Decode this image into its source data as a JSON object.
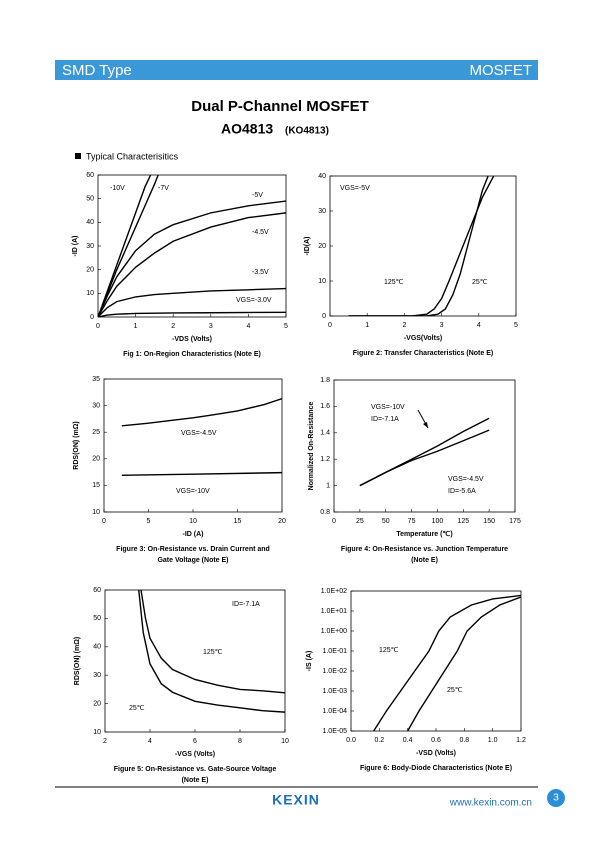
{
  "header": {
    "left": "SMD Type",
    "right": "MOSFET"
  },
  "title": "Dual P-Channel MOSFET",
  "part": "AO4813",
  "part_alt": "(KO4813)",
  "section": "Typical Characterisitics",
  "chart_data": [
    {
      "type": "line",
      "color": "#000000",
      "xlim": [
        0,
        5
      ],
      "ylim": [
        0,
        60
      ],
      "xticks": [
        0,
        1,
        2,
        3,
        4,
        5
      ],
      "yticks": [
        0,
        10,
        20,
        30,
        40,
        50,
        60
      ],
      "xlabel": "-VDS (Volts)",
      "ylabel": "-ID (A)",
      "caption": [
        "Fig 1: On-Region Characteristics (Note E)"
      ],
      "annotations": [
        "-10V",
        "-7V",
        "-5V",
        "-4.5V",
        "-3.5V",
        "VGS=-3.0V"
      ],
      "series": [
        {
          "x": [
            0,
            0.25,
            0.5,
            0.75,
            1,
            1.25,
            1.4
          ],
          "values": [
            0,
            11,
            22,
            33,
            44,
            55,
            60
          ]
        },
        {
          "x": [
            0,
            0.25,
            0.5,
            0.75,
            1,
            1.25,
            1.5,
            1.6
          ],
          "values": [
            0,
            10,
            20,
            29,
            38,
            47,
            56,
            60
          ]
        },
        {
          "x": [
            0,
            0.25,
            0.5,
            1,
            1.5,
            2,
            3,
            4,
            5
          ],
          "values": [
            0,
            9,
            17,
            28,
            35,
            39,
            44,
            47,
            49
          ]
        },
        {
          "x": [
            0,
            0.25,
            0.5,
            1,
            1.5,
            2,
            3,
            4,
            5
          ],
          "values": [
            0,
            7,
            13,
            21,
            27,
            32,
            38,
            42,
            44
          ]
        },
        {
          "x": [
            0,
            0.25,
            0.5,
            1,
            1.5,
            2,
            3,
            4,
            5
          ],
          "values": [
            0,
            4,
            6.5,
            8.5,
            9.5,
            10,
            11,
            11.5,
            12
          ]
        },
        {
          "x": [
            0,
            0.25,
            0.5,
            1,
            2,
            3,
            5
          ],
          "values": [
            0,
            0.8,
            1.2,
            1.5,
            1.7,
            1.8,
            2
          ]
        }
      ]
    },
    {
      "type": "line",
      "color": "#000000",
      "xlim": [
        0,
        5
      ],
      "ylim": [
        0,
        40
      ],
      "xticks": [
        0,
        1,
        2,
        3,
        4,
        5
      ],
      "yticks": [
        0,
        10,
        20,
        30,
        40
      ],
      "xlabel": "-VGS(Volts)",
      "ylabel": "-ID(A)",
      "caption": [
        "Figure 2: Transfer Characteristics (Note E)"
      ],
      "annotations": [
        "VGS=-5V",
        "125℃",
        "25℃"
      ],
      "series": [
        {
          "x": [
            0.5,
            2.2,
            2.6,
            2.8,
            3.0,
            3.2,
            3.5,
            3.8,
            4.1,
            4.4
          ],
          "values": [
            0,
            0,
            0.5,
            2,
            5,
            10,
            18,
            26,
            34,
            40
          ]
        },
        {
          "x": [
            0.5,
            2.6,
            2.9,
            3.1,
            3.3,
            3.5,
            3.7,
            3.9,
            4.1,
            4.25
          ],
          "values": [
            0,
            0,
            0.5,
            2,
            6,
            12,
            20,
            28,
            36,
            40
          ]
        }
      ]
    },
    {
      "type": "line",
      "color": "#000000",
      "xlim": [
        0,
        20
      ],
      "ylim": [
        10,
        35
      ],
      "xticks": [
        0,
        5,
        10,
        15,
        20
      ],
      "yticks": [
        10,
        15,
        20,
        25,
        30,
        35
      ],
      "xlabel": "-ID (A)",
      "ylabel": "RDS(ON) (mΩ)",
      "caption": [
        "Figure 3: On-Resistance vs. Drain Current and",
        "Gate Voltage (Note E)"
      ],
      "annotations": [
        "VGS=-4.5V",
        "VGS=-10V"
      ],
      "series": [
        {
          "x": [
            2,
            5,
            8,
            10,
            12,
            15,
            18,
            20
          ],
          "values": [
            26.2,
            26.7,
            27.3,
            27.7,
            28.2,
            29,
            30.2,
            31.3
          ]
        },
        {
          "x": [
            2,
            10,
            20
          ],
          "values": [
            16.9,
            17.1,
            17.4
          ]
        }
      ]
    },
    {
      "type": "line",
      "color": "#000000",
      "xlim": [
        0,
        175
      ],
      "ylim": [
        0.8,
        1.8
      ],
      "xticks": [
        0,
        25,
        50,
        75,
        100,
        125,
        150,
        175
      ],
      "yticks": [
        0.8,
        1,
        1.2,
        1.4,
        1.6,
        1.8
      ],
      "xlabel": "Temperature (℃)",
      "ylabel": "Normalized On-Resistance",
      "caption": [
        "Figure 4: On-Resistance vs. Junction Temperature",
        "(Note E)"
      ],
      "annotations": [
        "VGS=-10V",
        "ID=-7.1A",
        "VGS=-4.5V",
        "ID=-5.6A"
      ],
      "series": [
        {
          "x": [
            25,
            50,
            75,
            100,
            125,
            150
          ],
          "values": [
            1.0,
            1.1,
            1.2,
            1.3,
            1.41,
            1.51
          ]
        },
        {
          "x": [
            25,
            50,
            75,
            100,
            125,
            150
          ],
          "values": [
            1.0,
            1.1,
            1.19,
            1.26,
            1.34,
            1.42
          ]
        }
      ]
    },
    {
      "type": "line",
      "color": "#000000",
      "xlim": [
        2,
        10
      ],
      "ylim": [
        10,
        60
      ],
      "xticks": [
        2,
        4,
        6,
        8,
        10
      ],
      "yticks": [
        10,
        20,
        30,
        40,
        50,
        60
      ],
      "xlabel": "-VGS (Volts)",
      "ylabel": "RDS(ON) (mΩ)",
      "caption": [
        "Figure 5: On-Resistance vs. Gate-Source Voltage",
        "(Note E)"
      ],
      "annotations": [
        "ID=-7.1A",
        "125℃",
        "25℃"
      ],
      "series": [
        {
          "x": [
            3.6,
            3.8,
            4,
            4.5,
            5,
            6,
            7,
            8,
            9,
            10
          ],
          "values": [
            60,
            50,
            43,
            36,
            32,
            28.5,
            26.5,
            25,
            24.5,
            23.8
          ]
        },
        {
          "x": [
            3.5,
            3.7,
            4,
            4.5,
            5,
            6,
            7,
            8,
            9,
            10
          ],
          "values": [
            60,
            45,
            34,
            27,
            24,
            20.8,
            19.5,
            18.5,
            17.5,
            17
          ]
        }
      ]
    },
    {
      "type": "line",
      "color": "#000000",
      "log": true,
      "xlim": [
        0,
        1.2
      ],
      "ylim": [
        1e-05,
        100
      ],
      "xticks": [
        {
          "value": 0,
          "label": "0.0"
        },
        0.2,
        0.4,
        0.6,
        0.8,
        {
          "value": 1,
          "label": "1.0"
        },
        1.2
      ],
      "yticks": [
        {
          "value": 1e-05,
          "label": "1.0E-05"
        },
        {
          "value": 0.0001,
          "label": "1.0E-04"
        },
        {
          "value": 0.001,
          "label": "1.0E-03"
        },
        {
          "value": 0.01,
          "label": "1.0E-02"
        },
        {
          "value": 0.1,
          "label": "1.0E-01"
        },
        {
          "value": 1,
          "label": "1.0E+00"
        },
        {
          "value": 10,
          "label": "1.0E+01"
        },
        {
          "value": 100,
          "label": "1.0E+02"
        }
      ],
      "xlabel": "-VSD (Volts)",
      "ylabel": "-IS (A)",
      "caption": [
        "Figure 6: Body-Diode Characteristics (Note E)"
      ],
      "annotations": [
        "125℃",
        "25℃"
      ],
      "series": [
        {
          "x": [
            0.16,
            0.25,
            0.35,
            0.45,
            0.55,
            0.62,
            0.7,
            0.85,
            1.0,
            1.2
          ],
          "values": [
            1e-05,
            0.0001,
            0.001,
            0.01,
            0.1,
            1,
            5,
            20,
            40,
            60
          ]
        },
        {
          "x": [
            0.4,
            0.48,
            0.57,
            0.66,
            0.75,
            0.82,
            0.92,
            1.05,
            1.2
          ],
          "values": [
            1e-05,
            0.0001,
            0.001,
            0.01,
            0.1,
            1,
            5,
            20,
            50
          ]
        }
      ]
    }
  ],
  "footer": {
    "brand": "KEXIN",
    "url": "www.kexin.com.cn",
    "page": "3"
  }
}
